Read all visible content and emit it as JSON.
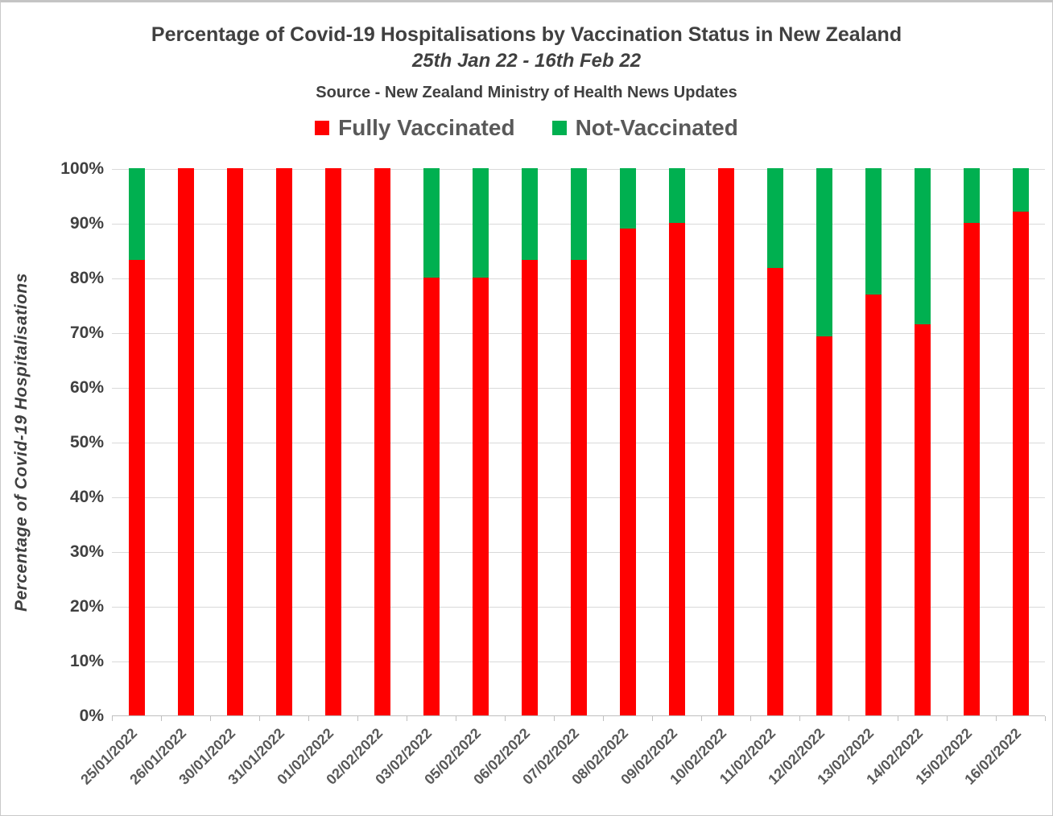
{
  "header": {
    "title": "Percentage of Covid-19 Hospitalisations by Vaccination Status in New Zealand",
    "subtitle": "25th Jan 22 - 16th Feb 22",
    "source": "Source - New Zealand Ministry of Health News Updates"
  },
  "colors": {
    "fully_vaccinated": "#FF0000",
    "not_vaccinated": "#00B050",
    "gridline": "#D9D9D9",
    "axis_line": "#BFBFBF",
    "heading_text": "#404040",
    "axis_label_text": "#595959"
  },
  "chart_data": {
    "type": "bar",
    "stacked": true,
    "title": "Percentage of Covid-19 Hospitalisations by Vaccination Status in New Zealand",
    "subtitle": "25th Jan 22 - 16th Feb 22",
    "source": "Source - New Zealand Ministry of Health News Updates",
    "xlabel": "",
    "ylabel": "Percentage of Covid-19 Hospitalisations",
    "ylim": [
      0,
      100
    ],
    "y_tick_step": 10,
    "y_tick_suffix": "%",
    "grid": true,
    "legend_position": "top",
    "categories": [
      "25/01/2022",
      "26/01/2022",
      "30/01/2022",
      "31/01/2022",
      "01/02/2022",
      "02/02/2022",
      "03/02/2022",
      "05/02/2022",
      "06/02/2022",
      "07/02/2022",
      "08/02/2022",
      "09/02/2022",
      "10/02/2022",
      "11/02/2022",
      "12/02/2022",
      "13/02/2022",
      "14/02/2022",
      "15/02/2022",
      "16/02/2022"
    ],
    "series": [
      {
        "name": "Fully Vaccinated",
        "color": "#FF0000",
        "values": [
          83.3,
          100,
          100,
          100,
          100,
          100,
          80,
          80,
          83.3,
          83.3,
          88.9,
          90,
          100,
          81.8,
          69.2,
          76.9,
          71.4,
          90,
          92
        ]
      },
      {
        "name": "Not-Vaccinated",
        "color": "#00B050",
        "values": [
          16.7,
          0,
          0,
          0,
          0,
          0,
          20,
          20,
          16.7,
          16.7,
          11.1,
          10,
          0,
          18.2,
          30.8,
          23.1,
          28.6,
          10,
          8
        ]
      }
    ]
  }
}
